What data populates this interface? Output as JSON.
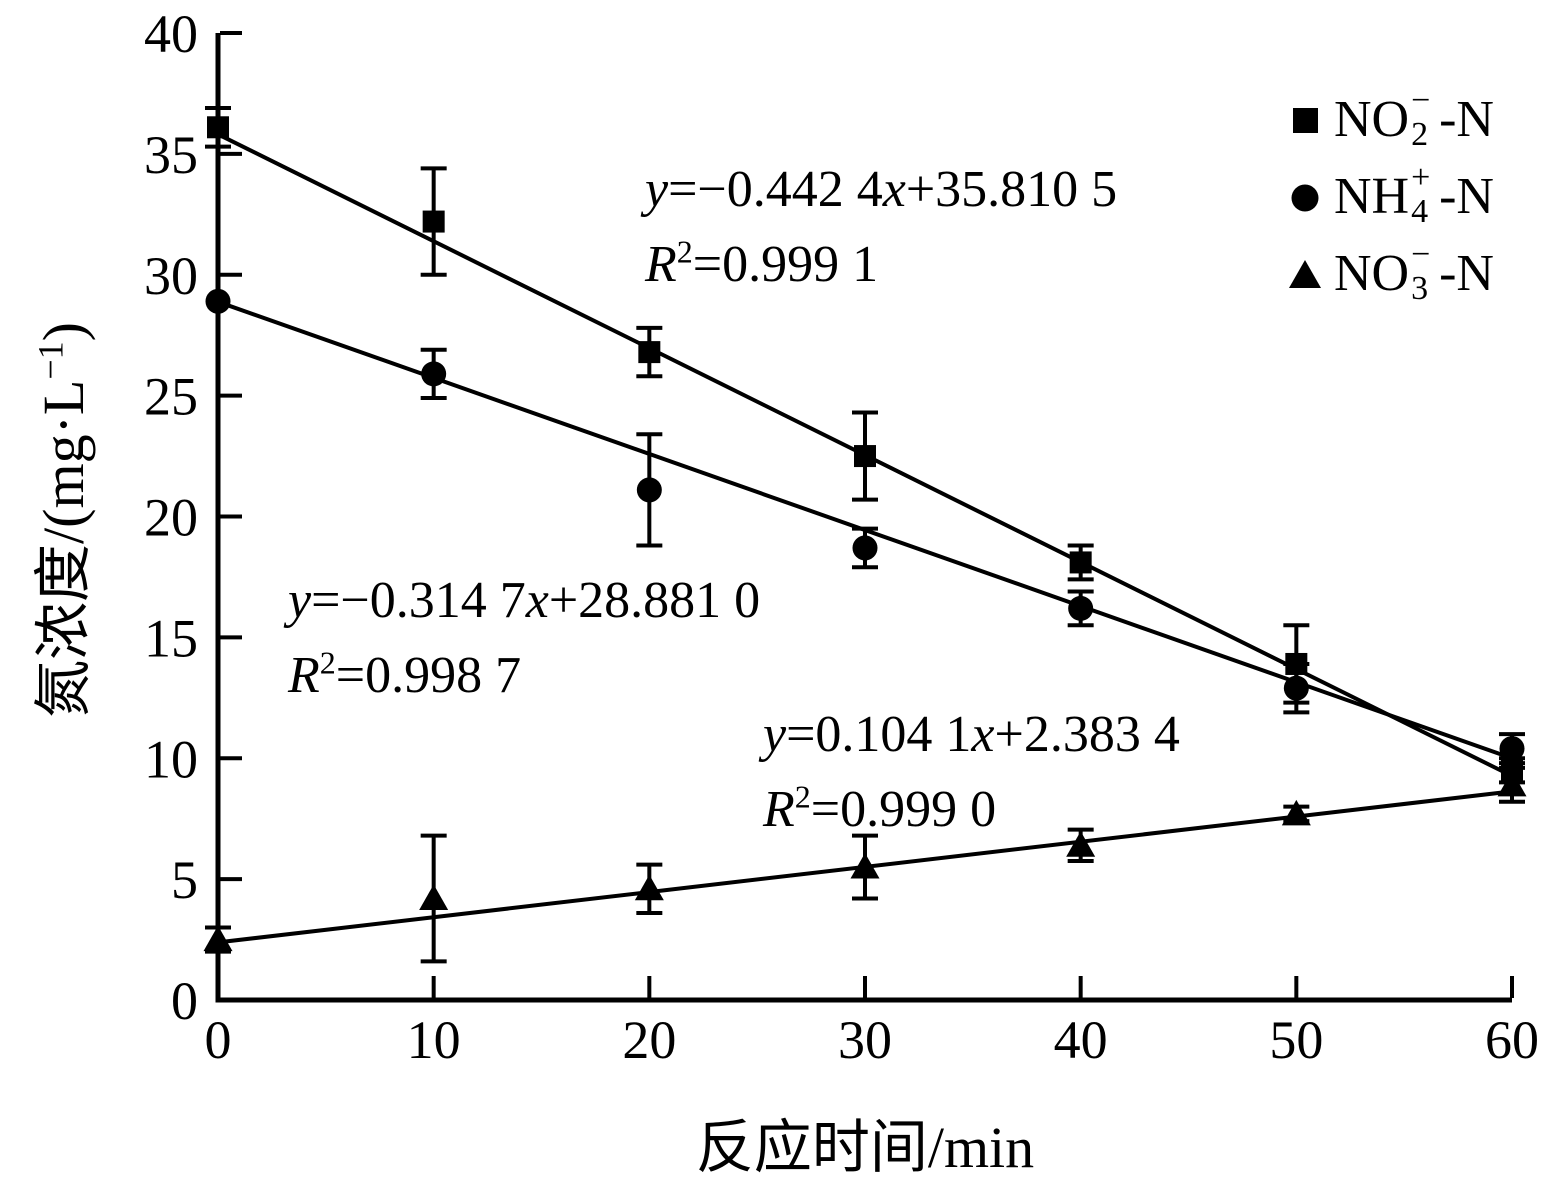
{
  "axes": {
    "x_title": "反应时间/min",
    "y_title_pre": "氮浓度/(mg·L",
    "y_title_sup": "−1",
    "y_title_post": ")"
  },
  "equations": [
    {
      "lhs": "y",
      "mid": "=−0.442 4",
      "xvar": "x",
      "rhs": "+35.810 5",
      "r": "R",
      "rsup": "2",
      "rval": "=0.999 1"
    },
    {
      "lhs": "y",
      "mid": "=−0.314 7",
      "xvar": "x",
      "rhs": "+28.881 0",
      "r": "R",
      "rsup": "2",
      "rval": "=0.998 7"
    },
    {
      "lhs": "y",
      "mid": "=0.104 1",
      "xvar": "x",
      "rhs": "+2.383 4",
      "r": "R",
      "rsup": "2",
      "rval": "=0.999 0"
    }
  ],
  "legend": [
    {
      "marker": "square",
      "base": "NO",
      "sub": "2",
      "sup": "−",
      "tail": "-N"
    },
    {
      "marker": "circle",
      "base": "NH",
      "sub": "4",
      "sup": "+",
      "tail": "-N"
    },
    {
      "marker": "triangle",
      "base": "NO",
      "sub": "3",
      "sup": "−",
      "tail": "-N"
    }
  ],
  "chart_data": {
    "type": "scatter",
    "title": "",
    "xlabel": "反应时间/min",
    "ylabel": "氮浓度/(mg·L−1)",
    "xlim": [
      0,
      60
    ],
    "ylim": [
      0,
      40
    ],
    "x_ticks": [
      0,
      10,
      20,
      30,
      40,
      50,
      60
    ],
    "y_ticks": [
      0,
      5,
      10,
      15,
      20,
      25,
      30,
      35,
      40
    ],
    "grid": false,
    "legend_position": "top-right",
    "ink_color": "#000000",
    "x": [
      0,
      10,
      20,
      30,
      40,
      50,
      60
    ],
    "series": [
      {
        "name": "NO2−-N",
        "marker": "square",
        "color": "#000000",
        "values": [
          36.1,
          32.2,
          26.8,
          22.5,
          18.1,
          13.9,
          9.5
        ],
        "errors": [
          0.8,
          2.2,
          1.0,
          1.8,
          0.7,
          1.6,
          0.5
        ],
        "fit": {
          "slope": -0.4424,
          "intercept": 35.8105,
          "r2": 0.9991
        }
      },
      {
        "name": "NH4+-N",
        "marker": "circle",
        "color": "#000000",
        "values": [
          28.9,
          25.9,
          21.1,
          18.7,
          16.2,
          12.9,
          10.4
        ],
        "errors": [
          0,
          1.0,
          2.3,
          0.8,
          0.7,
          1.0,
          0.6
        ],
        "fit": {
          "slope": -0.3147,
          "intercept": 28.881,
          "r2": 0.9987
        }
      },
      {
        "name": "NO3−-N",
        "marker": "triangle",
        "color": "#000000",
        "values": [
          2.5,
          4.2,
          4.6,
          5.5,
          6.4,
          7.7,
          8.9
        ],
        "errors": [
          0.5,
          2.6,
          1.0,
          1.3,
          0.65,
          0.3,
          0.7
        ],
        "fit": {
          "slope": 0.1041,
          "intercept": 2.3834,
          "r2": 0.999
        }
      }
    ]
  }
}
